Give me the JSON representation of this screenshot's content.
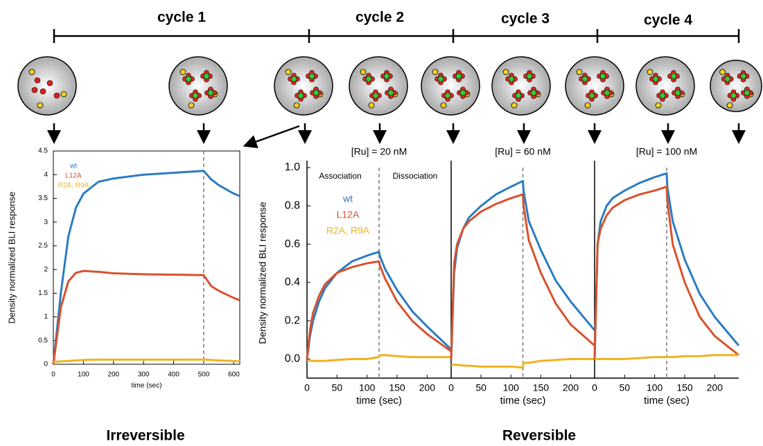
{
  "diagram": {
    "cycles": [
      "cycle 1",
      "cycle 2",
      "cycle 3",
      "cycle 4"
    ],
    "groups": [
      "Irreversible",
      "Reversible"
    ]
  },
  "chart_data": [
    {
      "type": "line",
      "xlabel": "time (sec)",
      "ylabel": "Density normalized BLI response",
      "x": [
        0,
        25,
        50,
        75,
        100,
        150,
        200,
        300,
        400,
        500,
        525,
        550,
        600,
        620
      ],
      "series": [
        {
          "name": "wt",
          "color": "#2a7bc4",
          "values": [
            0,
            1.5,
            2.7,
            3.3,
            3.6,
            3.85,
            3.92,
            4.0,
            4.04,
            4.08,
            3.9,
            3.78,
            3.6,
            3.55
          ]
        },
        {
          "name": "L12A",
          "color": "#d9512c",
          "values": [
            0,
            1.2,
            1.75,
            1.93,
            1.97,
            1.95,
            1.92,
            1.9,
            1.89,
            1.88,
            1.65,
            1.55,
            1.4,
            1.35
          ]
        },
        {
          "name": "R2A, R9A",
          "color": "#eeb31f",
          "values": [
            0.05,
            0.06,
            0.07,
            0.08,
            0.09,
            0.1,
            0.1,
            0.1,
            0.1,
            0.1,
            0.09,
            0.08,
            0.07,
            0.06
          ]
        }
      ],
      "xlim": [
        0,
        620
      ],
      "xticks": [
        0,
        100,
        200,
        300,
        400,
        500,
        600
      ],
      "ylim": [
        0,
        4.5
      ],
      "yticks": [
        0,
        0.5,
        1,
        1.5,
        2,
        2.5,
        3,
        3.5,
        4,
        4.5
      ],
      "vline": 500
    },
    {
      "type": "line",
      "title": "[Ru] = 20 nM",
      "xlabel": "time (sec)",
      "ylabel": "Density normalized BLI response",
      "annotations": [
        "Association",
        "Dissociation"
      ],
      "x": [
        0,
        5,
        10,
        20,
        30,
        50,
        75,
        100,
        120,
        121,
        130,
        150,
        175,
        200,
        240
      ],
      "series": [
        {
          "name": "wt",
          "color": "#2a7bc4",
          "values": [
            0,
            0.12,
            0.2,
            0.3,
            0.37,
            0.45,
            0.51,
            0.54,
            0.56,
            0.54,
            0.47,
            0.36,
            0.25,
            0.17,
            0.05
          ]
        },
        {
          "name": "L12A",
          "color": "#d9512c",
          "values": [
            0,
            0.15,
            0.24,
            0.33,
            0.39,
            0.45,
            0.48,
            0.5,
            0.51,
            0.49,
            0.42,
            0.3,
            0.2,
            0.13,
            0.04
          ]
        },
        {
          "name": "R2A, R9A",
          "color": "#eeb31f",
          "values": [
            -0.01,
            -0.01,
            -0.01,
            -0.01,
            -0.01,
            -0.005,
            0,
            0,
            0.01,
            0.02,
            0.02,
            0.015,
            0.01,
            0.01,
            0.01
          ]
        }
      ],
      "xlim": [
        0,
        240
      ],
      "xticks": [
        0,
        50,
        100,
        150,
        200
      ],
      "ylim": [
        -0.1,
        1.0
      ],
      "yticks": [
        {
          "value": 0,
          "label": "0.0"
        },
        0.2,
        0.4,
        0.6,
        0.8,
        {
          "value": 1,
          "label": "1.0"
        }
      ],
      "vline": 120
    },
    {
      "type": "line",
      "title": "[Ru] = 60 nM",
      "xlabel": "time (sec)",
      "x": [
        0,
        5,
        10,
        20,
        30,
        50,
        75,
        100,
        120,
        121,
        130,
        150,
        175,
        200,
        240
      ],
      "series": [
        {
          "color": "#2a7bc4",
          "values": [
            0,
            0.45,
            0.58,
            0.68,
            0.74,
            0.8,
            0.86,
            0.9,
            0.93,
            0.88,
            0.72,
            0.57,
            0.41,
            0.3,
            0.15
          ]
        },
        {
          "color": "#d9512c",
          "values": [
            0,
            0.5,
            0.6,
            0.68,
            0.72,
            0.77,
            0.81,
            0.84,
            0.86,
            0.8,
            0.62,
            0.45,
            0.29,
            0.18,
            0.07
          ]
        },
        {
          "color": "#eeb31f",
          "values": [
            -0.03,
            -0.03,
            -0.03,
            -0.035,
            -0.035,
            -0.04,
            -0.04,
            -0.04,
            -0.045,
            -0.02,
            -0.02,
            -0.01,
            -0.005,
            0,
            0
          ]
        }
      ],
      "xlim": [
        0,
        240
      ],
      "xticks": [
        0,
        50,
        100,
        150,
        200
      ],
      "ylim": [
        -0.1,
        1.0
      ],
      "vline": 120
    },
    {
      "type": "line",
      "title": "[Ru] = 100 nM",
      "xlabel": "time (sec)",
      "x": [
        0,
        5,
        10,
        20,
        30,
        50,
        75,
        100,
        120,
        121,
        130,
        150,
        175,
        200,
        240
      ],
      "series": [
        {
          "color": "#2a7bc4",
          "values": [
            0,
            0.6,
            0.72,
            0.8,
            0.84,
            0.88,
            0.92,
            0.95,
            0.97,
            0.9,
            0.72,
            0.52,
            0.34,
            0.22,
            0.07
          ]
        },
        {
          "color": "#d9512c",
          "values": [
            0,
            0.6,
            0.68,
            0.75,
            0.79,
            0.83,
            0.86,
            0.88,
            0.9,
            0.83,
            0.6,
            0.4,
            0.22,
            0.12,
            0.02
          ]
        },
        {
          "color": "#eeb31f",
          "values": [
            0,
            0,
            0,
            0,
            0,
            0,
            0.005,
            0.01,
            0.01,
            0.01,
            0.01,
            0.015,
            0.015,
            0.02,
            0.02
          ]
        }
      ],
      "xlim": [
        0,
        240
      ],
      "xticks": [
        0,
        50,
        100,
        150,
        200
      ],
      "ylim": [
        -0.1,
        1.0
      ],
      "vline": 120
    }
  ]
}
